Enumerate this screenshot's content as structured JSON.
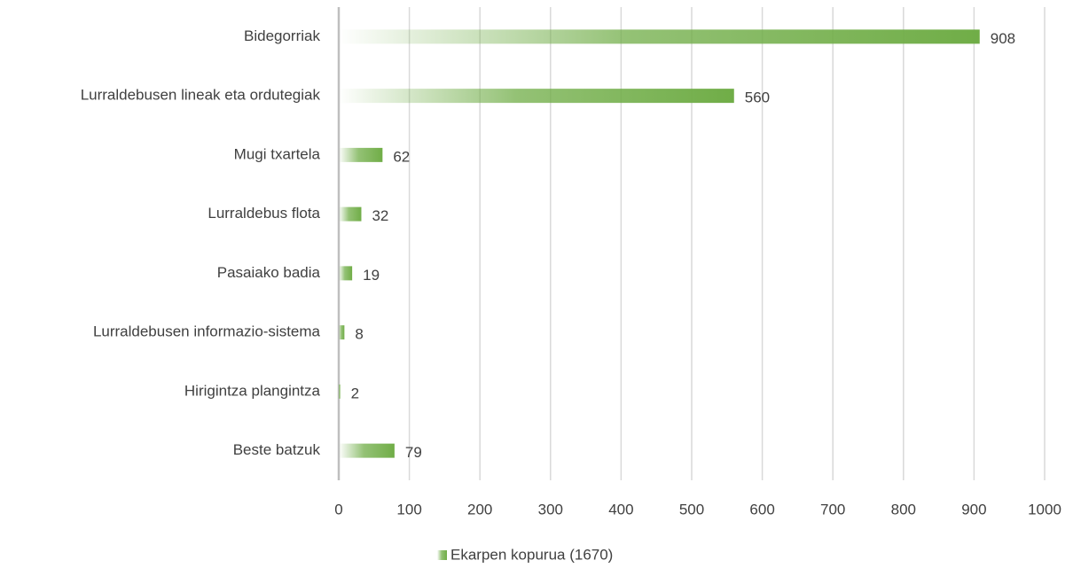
{
  "chart_data": {
    "type": "bar",
    "horizontal": true,
    "categories": [
      "Bidegorriak",
      "Lurraldebusen lineak eta ordutegiak",
      "Mugi txartela",
      "Lurraldebus flota",
      "Pasaiako badia",
      "Lurraldebusen informazio-sistema",
      "Hirigintza plangintza",
      "Beste batzuk"
    ],
    "series": [
      {
        "name": "Ekarpen kopurua (1670)",
        "color": "#70ad47",
        "values": [
          908,
          560,
          62,
          32,
          19,
          8,
          2,
          79
        ]
      }
    ],
    "xlim": [
      0,
      1000
    ],
    "xticks": [
      0,
      100,
      200,
      300,
      400,
      500,
      600,
      700,
      800,
      900,
      1000
    ],
    "grid": true,
    "legend": "bottom"
  }
}
